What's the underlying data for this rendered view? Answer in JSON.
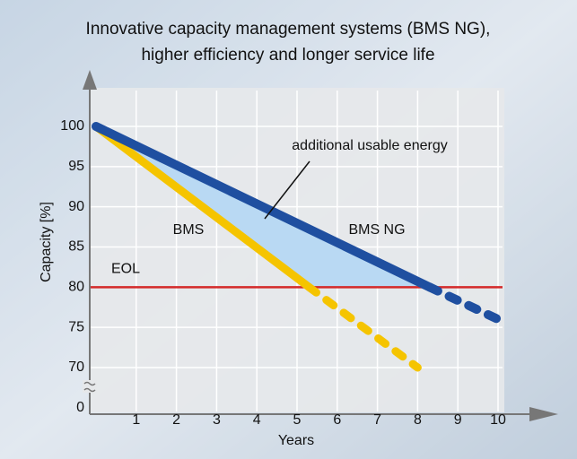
{
  "chart_data": {
    "type": "line",
    "title": [
      "Innovative capacity management systems (BMS NG),",
      "higher efficiency and longer service life"
    ],
    "xlabel": "Years",
    "ylabel": "Capacity [%]",
    "xlim": [
      0,
      10
    ],
    "xticks": [
      1,
      2,
      3,
      4,
      5,
      6,
      7,
      8,
      9,
      10
    ],
    "ylim": [
      0,
      100
    ],
    "yticks": [
      0,
      70,
      75,
      80,
      85,
      90,
      95,
      100
    ],
    "y_break": [
      0,
      70
    ],
    "grid": true,
    "series": [
      {
        "name": "BMS",
        "color": "#f5c400",
        "x": [
          0,
          5.3,
          8
        ],
        "values": [
          100,
          80,
          70
        ],
        "line_style": [
          "solid",
          "dashed"
        ]
      },
      {
        "name": "BMS NG",
        "color": "#1f4fa0",
        "x": [
          0,
          8.3,
          10
        ],
        "values": [
          100,
          80,
          76
        ],
        "line_style": [
          "solid",
          "dashed"
        ]
      }
    ],
    "reference_line": {
      "label": "EOL",
      "value": 80,
      "color": "#d42a2a"
    },
    "annotation": "additional usable energy",
    "fill_color": "#b9d9f3"
  }
}
